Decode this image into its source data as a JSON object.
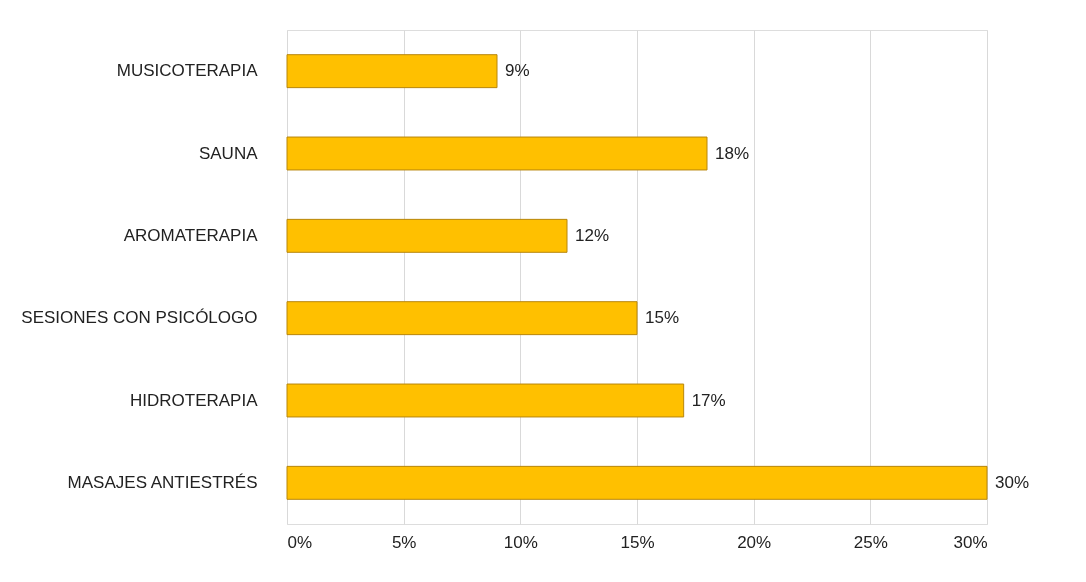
{
  "chart_data": {
    "type": "bar",
    "orientation": "horizontal",
    "categories": [
      "MUSICOTERAPIA",
      "SAUNA",
      "AROMATERAPIA",
      "SESIONES CON PSICÓLOGO",
      "HIDROTERAPIA",
      "MASAJES ANTIESTRÉS"
    ],
    "values": [
      9,
      18,
      12,
      15,
      17,
      30
    ],
    "value_labels": [
      "9%",
      "18%",
      "12%",
      "15%",
      "17%",
      "30%"
    ],
    "color": "#ffc000",
    "xlim": [
      0,
      30
    ],
    "xticks": [
      {
        "value": 0,
        "label": "0%"
      },
      {
        "value": 5,
        "label": "5%"
      },
      {
        "value": 10,
        "label": "10%"
      },
      {
        "value": 15,
        "label": "15%"
      },
      {
        "value": 20,
        "label": "20%"
      },
      {
        "value": 25,
        "label": "25%"
      },
      {
        "value": 30,
        "label": "30%"
      }
    ],
    "grid": "x"
  }
}
